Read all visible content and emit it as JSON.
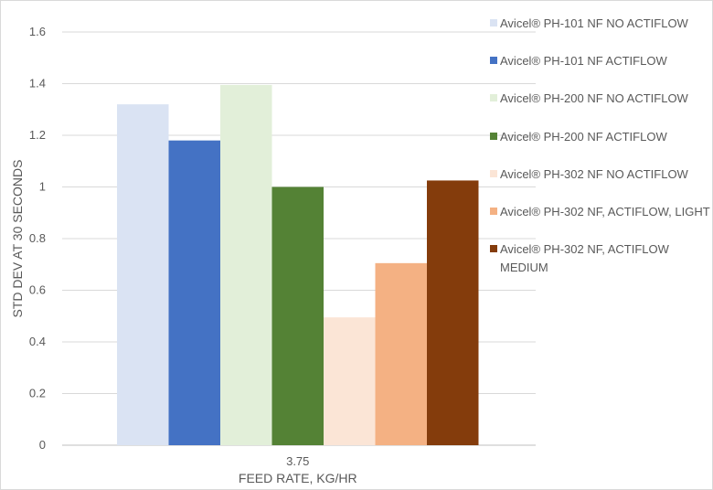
{
  "chart_data": {
    "type": "bar",
    "title": "",
    "xlabel": "FEED RATE, KG/HR",
    "ylabel": "STD DEV AT 30 SECONDS",
    "categories": [
      "3.75"
    ],
    "ylim": [
      0,
      1.6
    ],
    "yticks": [
      0,
      0.2,
      0.4,
      0.6,
      0.8,
      1,
      1.2,
      1.4,
      1.6
    ],
    "ytick_labels": [
      "0",
      "0.2",
      "0.4",
      "0.6",
      "0.8",
      "1",
      "1.2",
      "1.4",
      "1.6"
    ],
    "grid": true,
    "legend_position": "right",
    "series": [
      {
        "name": "Avicel® PH-101 NF NO ACTIFLOW",
        "values": [
          1.32
        ],
        "color": "#dae3f3"
      },
      {
        "name": "Avicel® PH-101 NF ACTIFLOW",
        "values": [
          1.18
        ],
        "color": "#4472c4"
      },
      {
        "name": "Avicel® PH-200 NF NO ACTIFLOW",
        "values": [
          1.395
        ],
        "color": "#e2efd9"
      },
      {
        "name": "Avicel® PH-200 NF ACTIFLOW",
        "values": [
          1.0
        ],
        "color": "#548235"
      },
      {
        "name": "Avicel® PH-302 NF  NO ACTIFLOW",
        "values": [
          0.495
        ],
        "color": "#fbe5d6"
      },
      {
        "name": "Avicel® PH-302 NF, ACTIFLOW, LIGHT",
        "values": [
          0.705
        ],
        "color": "#f4b183"
      },
      {
        "name": "Avicel® PH-302 NF, ACTIFLOW MEDIUM",
        "values": [
          1.025
        ],
        "color": "#843c0c"
      }
    ]
  }
}
